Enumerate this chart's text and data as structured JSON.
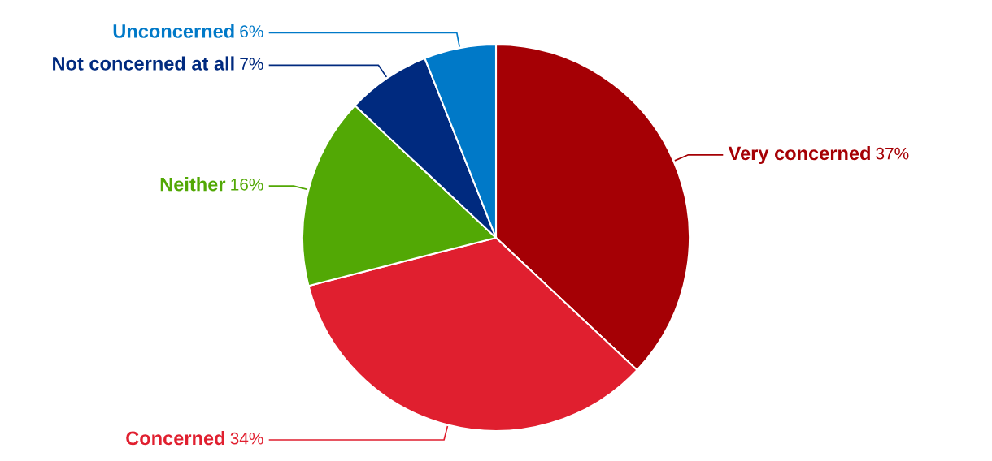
{
  "chart_data": {
    "type": "pie",
    "categories": [
      "Very concerned",
      "Concerned",
      "Neither",
      "Not concerned at all",
      "Unconcerned"
    ],
    "values": [
      37,
      34,
      16,
      7,
      6
    ],
    "colors": [
      "#a50005",
      "#e01f2f",
      "#52a805",
      "#002a7f",
      "#0079c8"
    ],
    "value_labels": [
      "37%",
      "34%",
      "16%",
      "7%",
      "6%"
    ]
  }
}
